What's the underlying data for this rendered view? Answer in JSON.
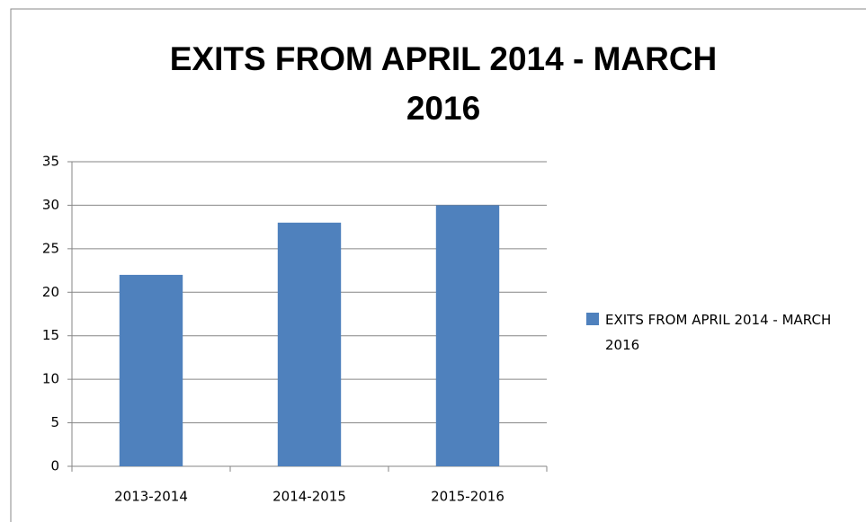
{
  "chart_data": {
    "type": "bar",
    "title": "EXITS FROM APRIL 2014 - MARCH 2016",
    "categories": [
      "2013-2014",
      "2014-2015",
      "2015-2016"
    ],
    "series": [
      {
        "name": "EXITS FROM APRIL 2014 - MARCH 2016",
        "color": "#4f81bd",
        "values": [
          22,
          28,
          30
        ]
      }
    ],
    "ylim": [
      0,
      35
    ],
    "yticks": [
      0,
      5,
      10,
      15,
      20,
      25,
      30,
      35
    ],
    "grid": true,
    "legend": "right"
  }
}
